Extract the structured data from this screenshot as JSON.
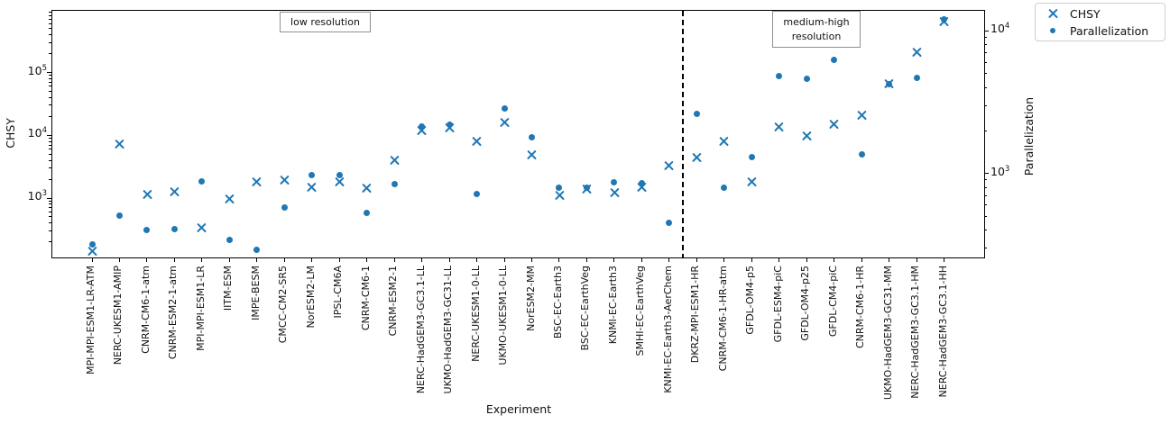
{
  "chart_data": {
    "type": "scatter",
    "title": "",
    "xlabel": "Experiment",
    "grid": false,
    "legend_position": "outside upper right",
    "left_axis": {
      "label": "CHSY",
      "scale": "log",
      "tick_labels": [
        "10^3",
        "10^4",
        "10^5"
      ],
      "tick_exponents": [
        3,
        4,
        5
      ],
      "ylim": [
        114,
        950000
      ]
    },
    "right_axis": {
      "label": "Parallelization",
      "scale": "log",
      "tick_labels": [
        "10^3",
        "10^4"
      ],
      "tick_exponents": [
        3,
        4
      ],
      "ylim": [
        258,
        13800
      ]
    },
    "annotations": [
      {
        "text": "low resolution",
        "section": "left of divider"
      },
      {
        "text": "medium-high\nresolution",
        "section": "right of divider"
      }
    ],
    "divider": {
      "style": "dashed",
      "after_category_index": 21
    },
    "categories": [
      "MPI-MPI-ESM1-LR-ATM",
      "NERC-UKESM1-AMIP",
      "CNRM-CM6-1-atm",
      "CNRM-ESM2-1-atm",
      "MPI-MPI-ESM1-LR",
      "IITM-ESM",
      "IMPE-BESM",
      "CMCC-CM2-SR5",
      "NorESM2-LM",
      "IPSL-CM6A",
      "CNRM-CM6-1",
      "CNRM-ESM2-1",
      "NERC-HadGEM3-GC3.1-LL",
      "UKMO-HadGEM3-GC31-LL",
      "NERC-UKESM1-0-LL",
      "UKMO-UKESM1-0-LL",
      "NorESM2-MM",
      "BSC-EC-Earth3",
      "BSC-EC-EarthVeg",
      "KNMI-EC-Earth3",
      "SMHI-EC-EarthVeg",
      "KNMI-EC-Earth3-AerChem",
      "DKRZ-MPI-ESM1-HR",
      "CNRM-CM6-1-HR-atm",
      "GFDL-OM4-p5",
      "GFDL-ESM4-piC",
      "GFDL-OM4-p25",
      "GFDL-CM4-piC",
      "CNRM-CM6-1-HR",
      "UKMO-HadGEM3-GC31-MM",
      "NERC-HadGEM3-GC3.1-HM",
      "NERC-HadGEM3-GC3.1-HH"
    ],
    "series": [
      {
        "name": "CHSY",
        "axis": "left",
        "marker": "x",
        "values": [
          140,
          7200,
          1150,
          1250,
          340,
          950,
          1800,
          1950,
          1500,
          1800,
          1450,
          4000,
          12000,
          13000,
          8000,
          15800,
          4900,
          1100,
          1400,
          1200,
          1500,
          3300,
          4400,
          8000,
          1800,
          13500,
          9800,
          15000,
          21000,
          65000,
          210000,
          650000
        ]
      },
      {
        "name": "Parallelization",
        "axis": "right",
        "marker": "dot",
        "values": [
          320,
          510,
          400,
          410,
          880,
          340,
          290,
          580,
          970,
          970,
          530,
          840,
          2150,
          2200,
          720,
          2850,
          1800,
          790,
          790,
          870,
          850,
          450,
          2600,
          790,
          1300,
          4800,
          4600,
          6300,
          1360,
          4250,
          4650,
          12000
        ]
      }
    ],
    "colors": {
      "marker": "#1f77b4",
      "spine": "#000000",
      "annotation_border": "#909090",
      "legend_border": "#cfcfcf"
    }
  }
}
